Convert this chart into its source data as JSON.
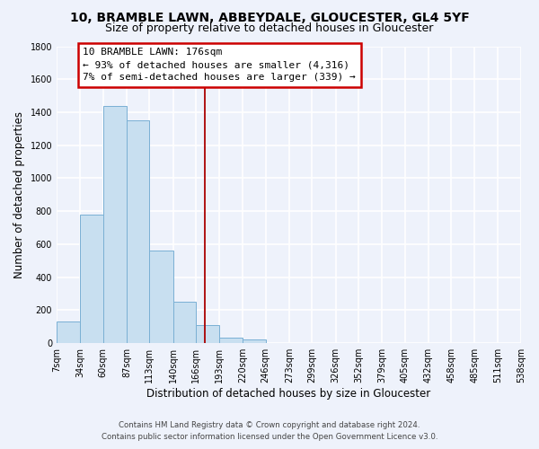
{
  "title": "10, BRAMBLE LAWN, ABBEYDALE, GLOUCESTER, GL4 5YF",
  "subtitle": "Size of property relative to detached houses in Gloucester",
  "xlabel": "Distribution of detached houses by size in Gloucester",
  "ylabel": "Number of detached properties",
  "bin_labels": [
    "7sqm",
    "34sqm",
    "60sqm",
    "87sqm",
    "113sqm",
    "140sqm",
    "166sqm",
    "193sqm",
    "220sqm",
    "246sqm",
    "273sqm",
    "299sqm",
    "326sqm",
    "352sqm",
    "379sqm",
    "405sqm",
    "432sqm",
    "458sqm",
    "485sqm",
    "511sqm",
    "538sqm"
  ],
  "bar_heights": [
    130,
    780,
    1440,
    1350,
    560,
    250,
    110,
    35,
    25,
    0,
    0,
    0,
    0,
    0,
    0,
    0,
    0,
    0,
    0,
    0
  ],
  "bar_color": "#c8dff0",
  "bar_edge_color": "#7ab0d4",
  "property_line_x": 176,
  "annotation_label": "10 BRAMBLE LAWN: 176sqm",
  "annotation_line1": "← 93% of detached houses are smaller (4,316)",
  "annotation_line2": "7% of semi-detached houses are larger (339) →",
  "annotation_box_color": "#ffffff",
  "annotation_box_edge": "#cc0000",
  "vline_color": "#aa0000",
  "ylim": [
    0,
    1800
  ],
  "yticks": [
    0,
    200,
    400,
    600,
    800,
    1000,
    1200,
    1400,
    1600,
    1800
  ],
  "bin_edges": [
    7,
    34,
    60,
    87,
    113,
    140,
    166,
    193,
    220,
    246,
    273,
    299,
    326,
    352,
    379,
    405,
    432,
    458,
    485,
    511,
    538
  ],
  "footer_line1": "Contains HM Land Registry data © Crown copyright and database right 2024.",
  "footer_line2": "Contains public sector information licensed under the Open Government Licence v3.0.",
  "bg_color": "#eef2fb",
  "grid_color": "#ffffff",
  "title_fontsize": 10,
  "subtitle_fontsize": 9,
  "axis_label_fontsize": 8.5,
  "tick_fontsize": 7,
  "annot_fontsize": 8
}
